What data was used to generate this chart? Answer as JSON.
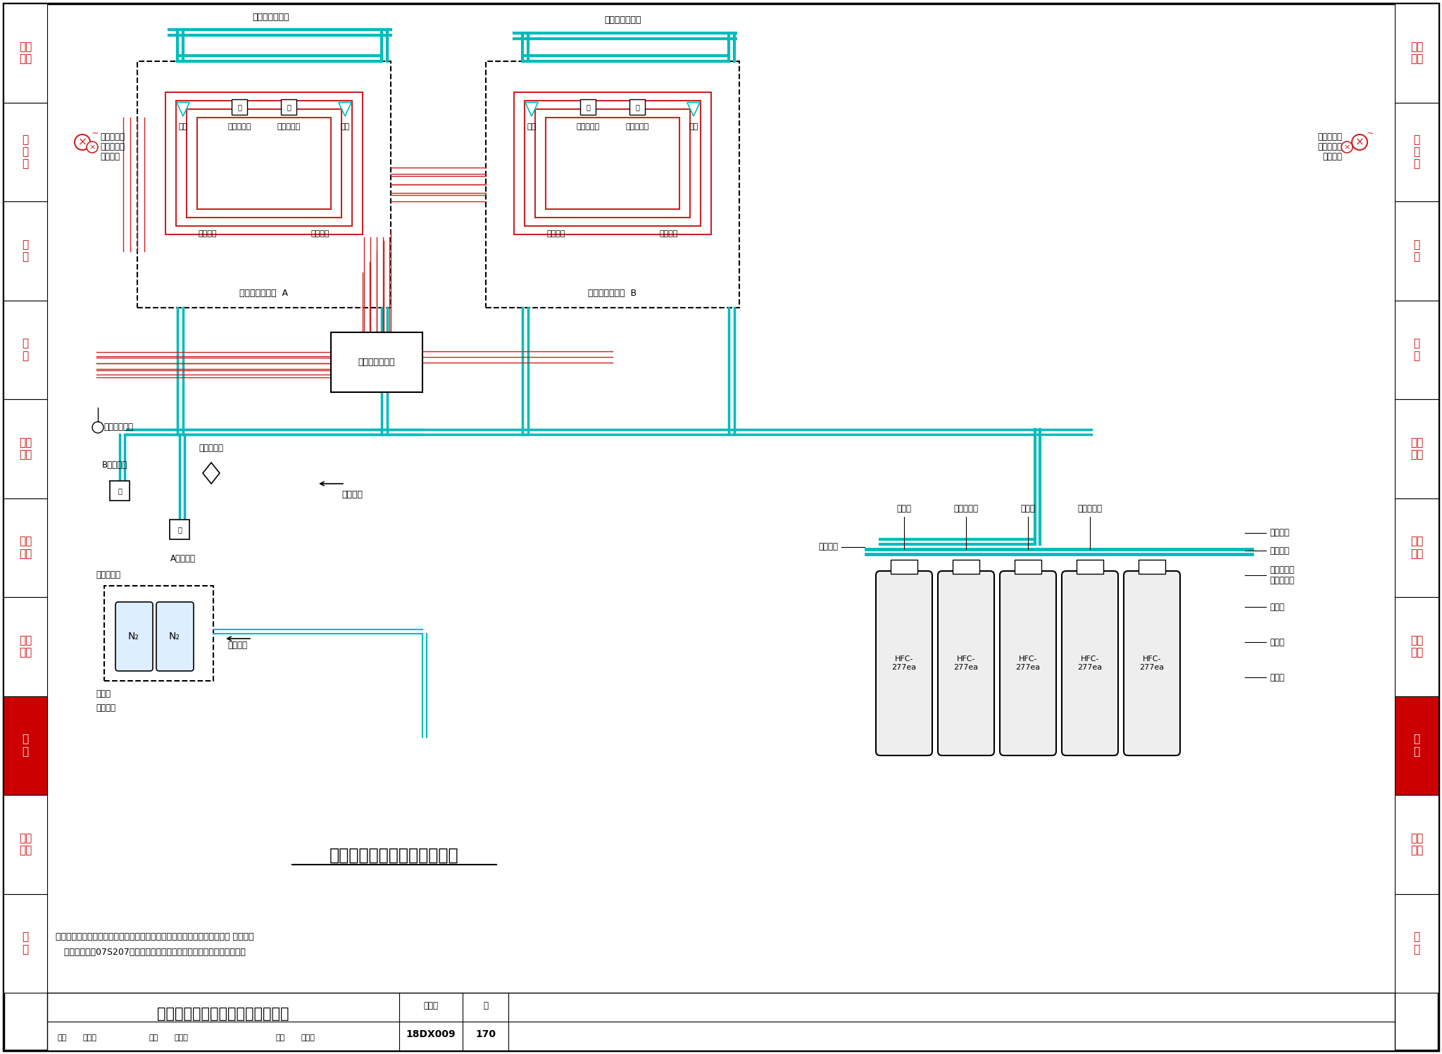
{
  "title": "七氟丙烷组合分配系统原理图",
  "fig_num": "18DX009",
  "page_num": "170",
  "bg_color": "#FFFFFF",
  "border_color": "#000000",
  "sidebar_labels": [
    "建筑\n结构",
    "供\n配\n电",
    "接\n地",
    "监\n控",
    "网络\n布线",
    "电磁\n屏蔽",
    "空气\n调节",
    "消\n防",
    "工程\n示例",
    "附\n录"
  ],
  "sidebar_highlight": 7,
  "sidebar_text_color": "#CC0000",
  "sidebar_highlight_color": "#CC0000",
  "cyan_color": "#00BBBB",
  "red_color": "#CC2222",
  "black": "#000000",
  "white": "#FFFFFF",
  "note_text1": "注：本图为有管网七氟丙烷组合分配灭火系统原理图，具体技术参数可参见 国家建筑",
  "note_text2": "   标准设计图集07S207《气体消防系统选用、安装与建筑灭火器配置》。",
  "bottom_title": "七氟丙烷组合分配灭火系统原理图",
  "zone_a_label": "信息机房防护区  A",
  "zone_b_label": "信息机房防护区  B",
  "ctrl_label": "气体灭火控制器",
  "pipe_label_a": "灭火剂输送管道",
  "pipe_label_b": "灭火剂输送管道",
  "cyl_labels": [
    "HFC-\n277ea",
    "HFC-\n277ea",
    "HFC-\n277ea",
    "HFC-\n277ea",
    "HFC-\n277ea"
  ],
  "right_labels": [
    "焊接堵头",
    "高压软管",
    "手动启动器\n气动启动器",
    "容幂阀",
    "储气瓶",
    "储气架"
  ],
  "top_labels": [
    "集流管",
    "液体单向阀",
    "安全阀",
    "低压泄漏阀"
  ],
  "alarm_label1": "声光警报器",
  "alarm_label2": "喷放指示灯",
  "alarm_label3": "手动控制",
  "zs_label": "自锁压力开关",
  "gd_label": "气体单向阀",
  "sel_a_label": "A区选择阀",
  "sel_b_label": "B区选择阀",
  "qdgl_label": "启动管路",
  "lj_label": "连接法兰",
  "em_label": "电磁启动器",
  "qdp_label": "启动瓶",
  "qdpj_label": "启动瓶架",
  "qdgl2_label": "启动管路"
}
